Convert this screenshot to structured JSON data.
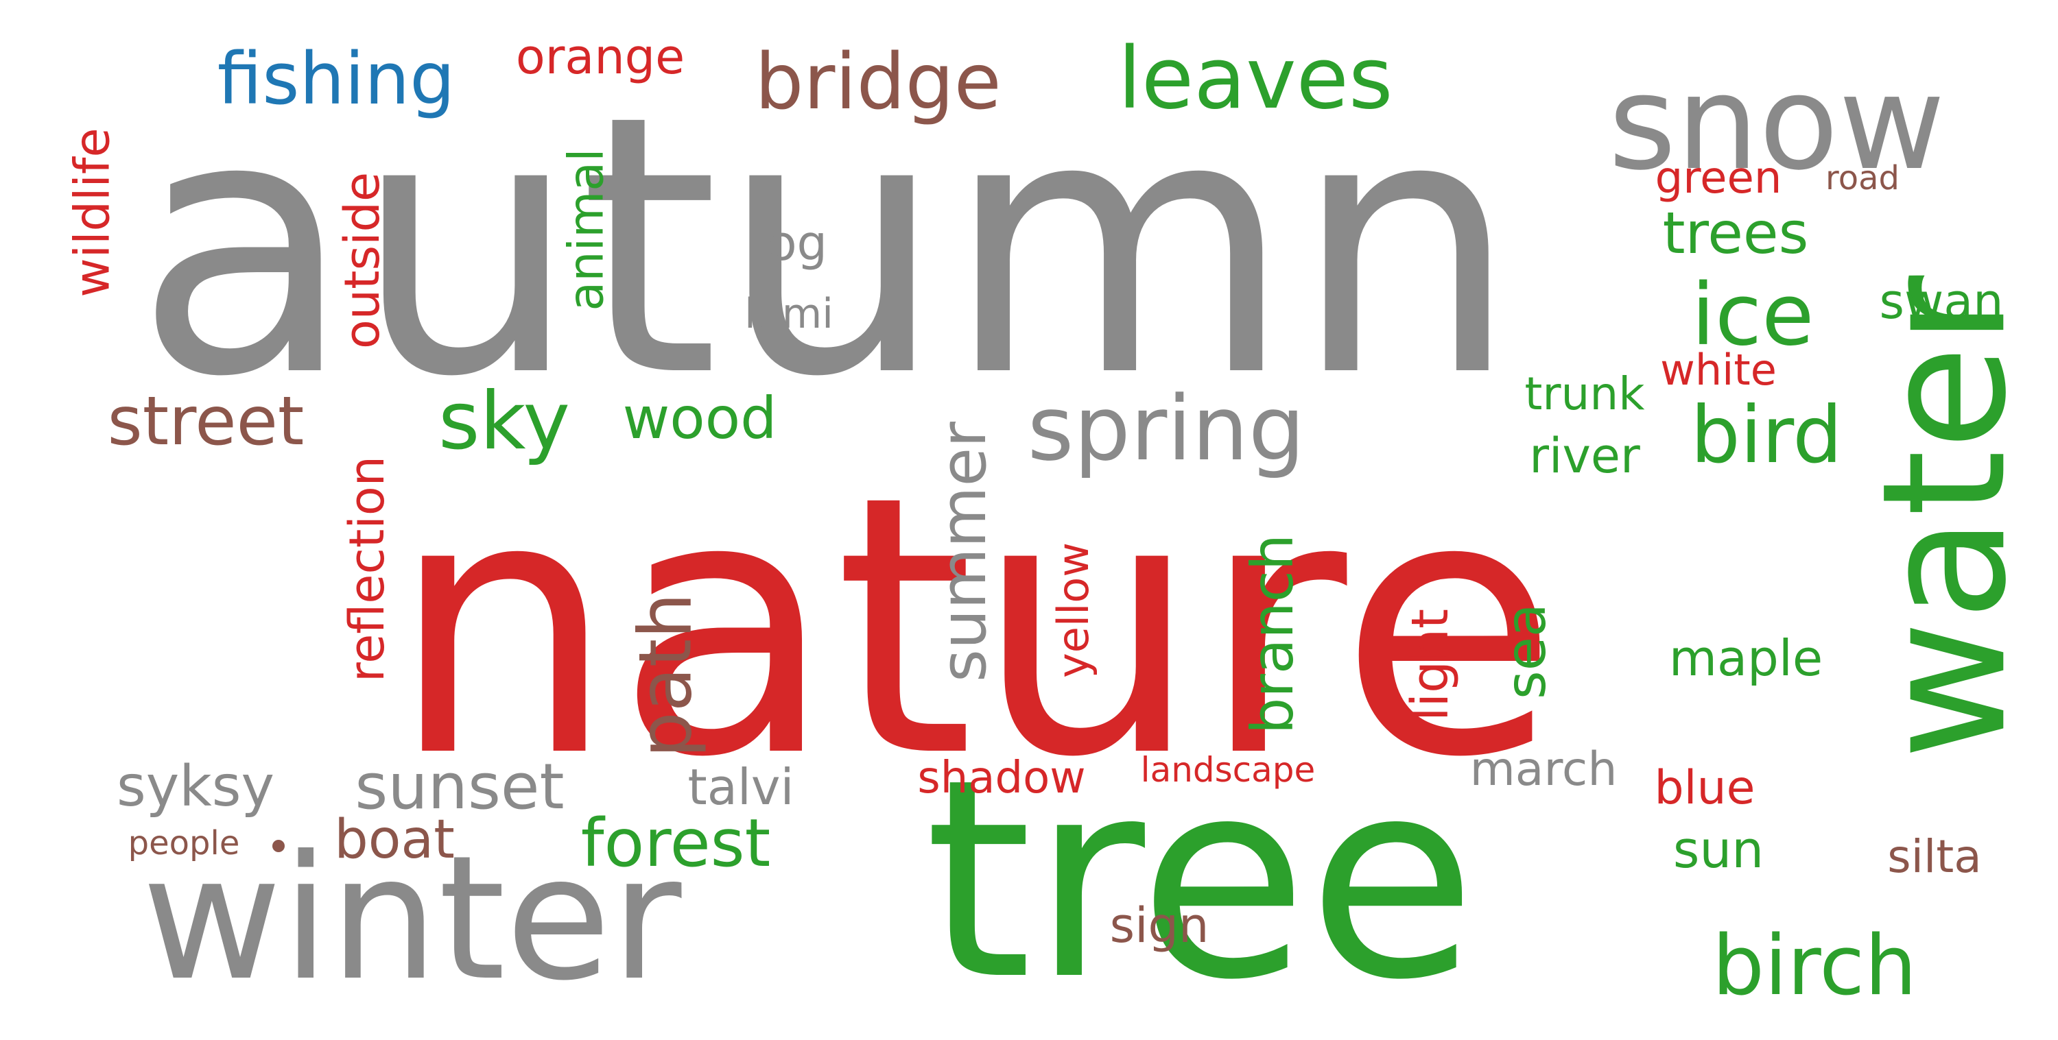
{
  "colors": {
    "red": "#d62728",
    "green": "#2ca02c",
    "gray": "#8a8a8a",
    "brown": "#8c564b",
    "blue": "#1f77b4",
    "background": "#ffffff"
  },
  "words": [
    {
      "text": "autumn",
      "color": "gray",
      "vertical": false
    },
    {
      "text": "nature",
      "color": "red",
      "vertical": false
    },
    {
      "text": "tree",
      "color": "green",
      "vertical": false
    },
    {
      "text": "water",
      "color": "green",
      "vertical": true
    },
    {
      "text": "winter",
      "color": "gray",
      "vertical": false
    },
    {
      "text": "snow",
      "color": "gray",
      "vertical": false
    },
    {
      "text": "spring",
      "color": "gray",
      "vertical": false
    },
    {
      "text": "leaves",
      "color": "green",
      "vertical": false
    },
    {
      "text": "bridge",
      "color": "brown",
      "vertical": false
    },
    {
      "text": "fishing",
      "color": "blue",
      "vertical": false
    },
    {
      "text": "orange",
      "color": "red",
      "vertical": false
    },
    {
      "text": "birch",
      "color": "green",
      "vertical": false
    },
    {
      "text": "ice",
      "color": "green",
      "vertical": false
    },
    {
      "text": "bird",
      "color": "green",
      "vertical": false
    },
    {
      "text": "sky",
      "color": "green",
      "vertical": false
    },
    {
      "text": "street",
      "color": "brown",
      "vertical": false
    },
    {
      "text": "forest",
      "color": "green",
      "vertical": false
    },
    {
      "text": "sunset",
      "color": "gray",
      "vertical": false
    },
    {
      "text": "summer",
      "color": "gray",
      "vertical": true
    },
    {
      "text": "path",
      "color": "brown",
      "vertical": true
    },
    {
      "text": "reflection",
      "color": "red",
      "vertical": true
    },
    {
      "text": "outside",
      "color": "red",
      "vertical": true
    },
    {
      "text": "wildlife",
      "color": "red",
      "vertical": true
    },
    {
      "text": "animal",
      "color": "green",
      "vertical": true
    },
    {
      "text": "branch",
      "color": "green",
      "vertical": true
    },
    {
      "text": "sea",
      "color": "green",
      "vertical": true
    },
    {
      "text": "light",
      "color": "red",
      "vertical": true
    },
    {
      "text": "yellow",
      "color": "red",
      "vertical": true
    },
    {
      "text": "trees",
      "color": "green",
      "vertical": false
    },
    {
      "text": "wood",
      "color": "green",
      "vertical": false
    },
    {
      "text": "syksy",
      "color": "gray",
      "vertical": false
    },
    {
      "text": "boat",
      "color": "brown",
      "vertical": false
    },
    {
      "text": "talvi",
      "color": "gray",
      "vertical": false
    },
    {
      "text": "maple",
      "color": "green",
      "vertical": false
    },
    {
      "text": "sun",
      "color": "green",
      "vertical": false
    },
    {
      "text": "march",
      "color": "gray",
      "vertical": false
    },
    {
      "text": "blue",
      "color": "red",
      "vertical": false
    },
    {
      "text": "shadow",
      "color": "red",
      "vertical": false
    },
    {
      "text": "river",
      "color": "green",
      "vertical": false
    },
    {
      "text": "trunk",
      "color": "green",
      "vertical": false
    },
    {
      "text": "silta",
      "color": "brown",
      "vertical": false
    },
    {
      "text": "sign",
      "color": "brown",
      "vertical": false
    },
    {
      "text": "green",
      "color": "red",
      "vertical": false
    },
    {
      "text": "white",
      "color": "red",
      "vertical": false
    },
    {
      "text": "swan",
      "color": "green",
      "vertical": false
    },
    {
      "text": "fog",
      "color": "gray",
      "vertical": false
    },
    {
      "text": "lumi",
      "color": "gray",
      "vertical": false
    },
    {
      "text": "landscape",
      "color": "red",
      "vertical": false
    },
    {
      "text": "people",
      "color": "brown",
      "vertical": false
    },
    {
      "text": "road",
      "color": "brown",
      "vertical": false
    }
  ]
}
